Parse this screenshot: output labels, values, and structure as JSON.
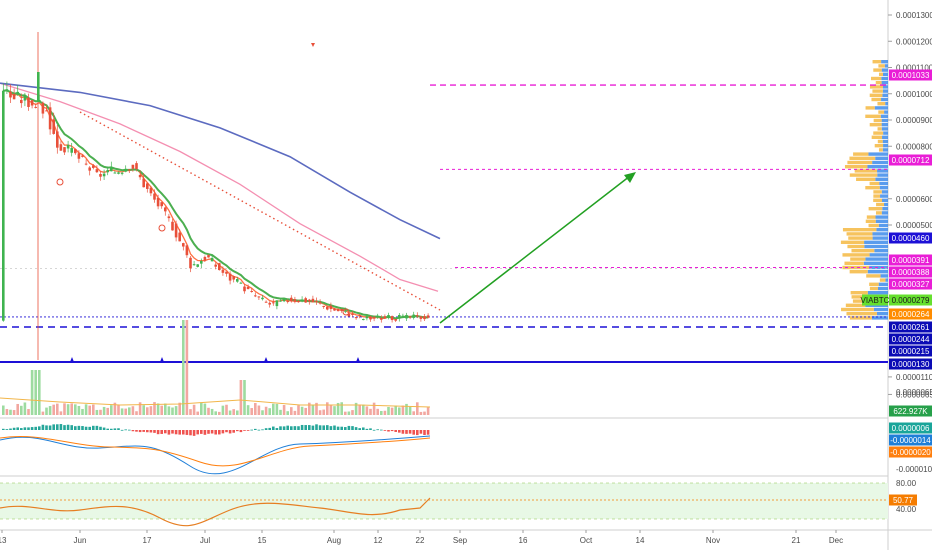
{
  "chart_data": {
    "type": "candlestick",
    "pair_label": "VIABTC",
    "price_axis": {
      "ticks": [
        "0.0001300",
        "0.0001200",
        "0.0001100",
        "0.0001000",
        "0.0000900",
        "0.0000800",
        "0.0000600",
        "0.0000500",
        "0.0000110",
        "0.0000065"
      ],
      "tick_values": [
        0.00013,
        0.00012,
        0.00011,
        0.0001,
        9e-05,
        8e-05,
        6e-05,
        5e-05,
        1.1e-05,
        6.5e-06
      ]
    },
    "x_axis": {
      "labels": [
        "13",
        "Jun",
        "17",
        "Jul",
        "15",
        "Aug",
        "12",
        "22",
        "Sep",
        "16",
        "Oct",
        "14",
        "Nov",
        "21",
        "Dec"
      ]
    },
    "price_badges": [
      {
        "text": "0.0001033",
        "color": "#e91ed6",
        "value": 0.0001033
      },
      {
        "text": "0.0000712",
        "color": "#e91ed6",
        "value": 7.12e-05
      },
      {
        "text": "0.0000460",
        "color": "#1d10d6",
        "value": 4.6e-05
      },
      {
        "text": "0.0000391",
        "color": "#e91ed6",
        "value": 3.91e-05
      },
      {
        "text": "0.0000388",
        "color": "#e91ed6",
        "value": 3.88e-05
      },
      {
        "text": "0.0000327",
        "color": "#e91ed6",
        "value": 3.27e-05
      },
      {
        "text": "0.0000279",
        "color": "#66e02e",
        "value": 2.79e-05
      },
      {
        "text": "0.0000264",
        "color": "#ff8c00",
        "value": 2.64e-05
      },
      {
        "text": "0.0000261",
        "color": "#0b0bb5",
        "value": 2.61e-05
      },
      {
        "text": "0.0000244",
        "color": "#0b0bb5",
        "value": 2.44e-05
      },
      {
        "text": "0.0000215",
        "color": "#0b0bb5",
        "value": 2.15e-05
      },
      {
        "text": "0.0000130",
        "color": "#0b0bb5",
        "value": 1.3e-05
      }
    ],
    "volume_pane": {
      "ticks": [
        "0.0000065"
      ],
      "badges": [
        {
          "text": "622.927K",
          "color": "#26a04a"
        }
      ]
    },
    "macd_pane": {
      "ticks": [
        "-0.0000100"
      ],
      "badges": [
        {
          "text": "0.0000006",
          "color": "#1aa59a"
        },
        {
          "text": "-0.0000014",
          "color": "#1f7fd8"
        },
        {
          "text": "-0.0000020",
          "color": "#ff7f0e"
        }
      ]
    },
    "rsi_pane": {
      "ticks": [
        "80.00",
        "40.00"
      ],
      "badges": [
        {
          "text": "50.77",
          "color": "#f57c00"
        }
      ],
      "value": 50.77
    },
    "colors": {
      "up": "#26a69a",
      "down": "#ef5350",
      "ema_short": "#4caf50",
      "ema_mid": "#ff7043",
      "ma_pink": "#f48fb1",
      "ma_blue": "#5c6bc0",
      "resistance": "#e91ed6",
      "support": "#1d10d6",
      "trend_arrow": "#22a022",
      "rsi_fill": "#e8f8e6"
    }
  }
}
